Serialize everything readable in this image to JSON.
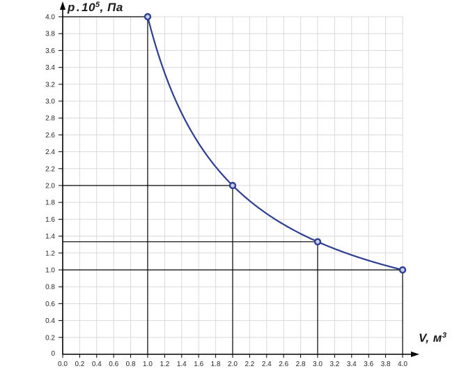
{
  "chart_data": {
    "type": "line",
    "title": "",
    "xlabel": "V, м³",
    "ylabel": "p·10⁵, Па",
    "ylabel_parts": {
      "var": "p",
      "dot": ".",
      "base": "10",
      "exp": "5",
      "unit": ", Па"
    },
    "xlabel_parts": {
      "var": "V",
      "comma": ", ",
      "unit_base": "м",
      "unit_exp": "3"
    },
    "xlim": [
      0,
      4.0
    ],
    "ylim": [
      0,
      4.0
    ],
    "grid": true,
    "grid_step": 0.2,
    "x_ticks": [
      "0.0",
      "0.2",
      "0.4",
      "0.6",
      "0.8",
      "1.0",
      "1.2",
      "1.4",
      "1.6",
      "1.8",
      "2.0",
      "2.2",
      "2.4",
      "2.6",
      "2.8",
      "3.0",
      "3.2",
      "3.4",
      "3.6",
      "3.8",
      "4.0"
    ],
    "y_ticks": [
      "0.2",
      "0.4",
      "0.6",
      "0.8",
      "1.0",
      "1.2",
      "1.4",
      "1.6",
      "1.8",
      "2.0",
      "2.2",
      "2.4",
      "2.6",
      "2.8",
      "3.0",
      "3.2",
      "3.4",
      "3.6",
      "3.8",
      "4.0"
    ],
    "origin_label": "0",
    "curve": {
      "equation": "p·V = 4",
      "constant": 4,
      "v_start": 1.0,
      "v_end": 4.0
    },
    "points": [
      {
        "V": 1.0,
        "p": 4.0
      },
      {
        "V": 2.0,
        "p": 2.0
      },
      {
        "V": 3.0,
        "p": 1.3333
      },
      {
        "V": 4.0,
        "p": 1.0
      }
    ],
    "guide_lines": true,
    "legend": null,
    "colors": {
      "curve": "#2e3e90",
      "marker_stroke": "#2e3e90",
      "marker_fill": "#c9d1ee",
      "grid": "#d8d8d8",
      "axis": "#000000",
      "guide": "#000000",
      "tick_text": "#262626"
    }
  }
}
